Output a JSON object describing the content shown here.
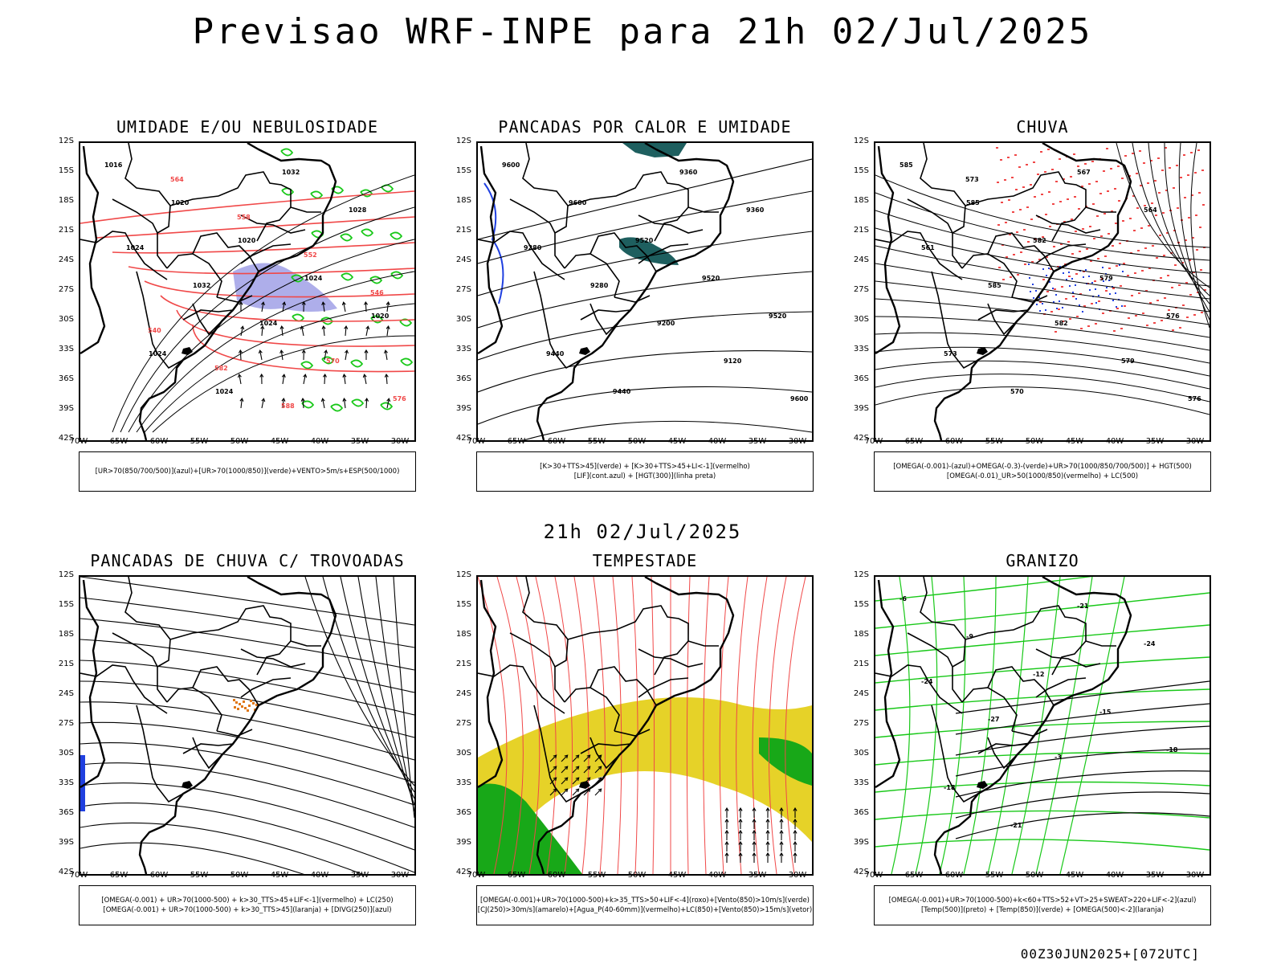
{
  "title": "Previsao WRF-INPE  para 21h 02/Jul/2025",
  "subtitle": "21h 02/Jul/2025",
  "footer": "00Z30JUN2025+[072UTC]",
  "lat_labels": [
    "12S",
    "15S",
    "18S",
    "21S",
    "24S",
    "27S",
    "30S",
    "33S",
    "36S",
    "39S",
    "42S"
  ],
  "lon_labels": [
    "70W",
    "65W",
    "60W",
    "55W",
    "50W",
    "45W",
    "40W",
    "35W",
    "30W"
  ],
  "colors": {
    "humidity_upper": "#a0a0e6",
    "humidity_low": "#18c818",
    "cape_teal": "#1e5f5f",
    "lifted_blue": "#2040e0",
    "rain_red": "#f04848",
    "thunder_orange": "#e07818",
    "storm_yellow": "#e6d228",
    "storm_green": "#18a818"
  },
  "panels": [
    {
      "title": "UMIDADE E/OU NEBULOSIDADE",
      "legend": [
        "[UR>70(850/700/500)](azul)+[UR>70(1000/850)](verde)+VENTO>5m/s+ESP(500/1000)"
      ],
      "contour_labels": [
        "1016",
        "1020",
        "1020",
        "1024",
        "1020",
        "1024",
        "1024",
        "1032",
        "1028",
        "1024",
        "1032",
        "1024",
        "570",
        "576",
        "564",
        "558",
        "552",
        "546",
        "540",
        "582",
        "588"
      ]
    },
    {
      "title": "PANCADAS POR CALOR E UMIDADE",
      "legend": [
        "[K>30+TTS>45](verde) + [K>30+TTS>45+LI<-1](vermelho)",
        "[LIF](cont.azul) + [HGT(300)](linha preta)"
      ],
      "contour_labels": [
        "9600",
        "9600",
        "9520",
        "9520",
        "9520",
        "9440",
        "9440",
        "9360",
        "9360",
        "9280",
        "9280",
        "9200",
        "9120",
        "9600"
      ]
    },
    {
      "title": "CHUVA",
      "legend": [
        "[OMEGA(-0.001)-(azul)+OMEGA(-0.3)-(verde)+UR>70(1000/850/700/500)] + HGT(500)",
        "[OMEGA(-0.01)_UR>50(1000/850)(vermelho) + LC(500)"
      ],
      "contour_labels": [
        "585",
        "585",
        "582",
        "579",
        "576",
        "573",
        "570",
        "567",
        "564",
        "561",
        "585",
        "582",
        "579",
        "576",
        "573"
      ]
    },
    {
      "title": "PANCADAS DE CHUVA C/ TROVOADAS",
      "legend": [
        "[OMEGA(-0.001) + UR>70(1000-500) + k>30_TTS>45+LIF<-1](vermelho) + LC(250)",
        "[OMEGA(-0.001) + UR>70(1000-500) + k>30_TTS>45](laranja) + [DIVG(250)](azul)"
      ],
      "contour_labels": []
    },
    {
      "title": "TEMPESTADE",
      "legend": [
        "[OMEGA(-0.001)+UR>70(1000-500)+k>35_TTS>50+LIF<-4](roxo)+[Vento(850)>10m/s](verde)",
        "[CJ(250)>30m/s](amarelo)+[Agua_P(40-60mm)](vermelho)+LC(850)+[Vento(850)>15m/s](vetor)"
      ],
      "contour_labels": []
    },
    {
      "title": "GRANIZO",
      "legend": [
        "[OMEGA(-0.001)+UR>70(1000-500)+k<60+TTS>52+VT>25+SWEAT>220+LIF<-2](azul)",
        "[Temp(500)](preto) + [Temp(850)](verde) + [OMEGA(500)<-2](laranja)"
      ],
      "contour_labels": [
        "-6",
        "-9",
        "-12",
        "-15",
        "-18",
        "-18",
        "-21",
        "-21",
        "-24",
        "-24",
        "-27",
        "-3"
      ]
    }
  ]
}
